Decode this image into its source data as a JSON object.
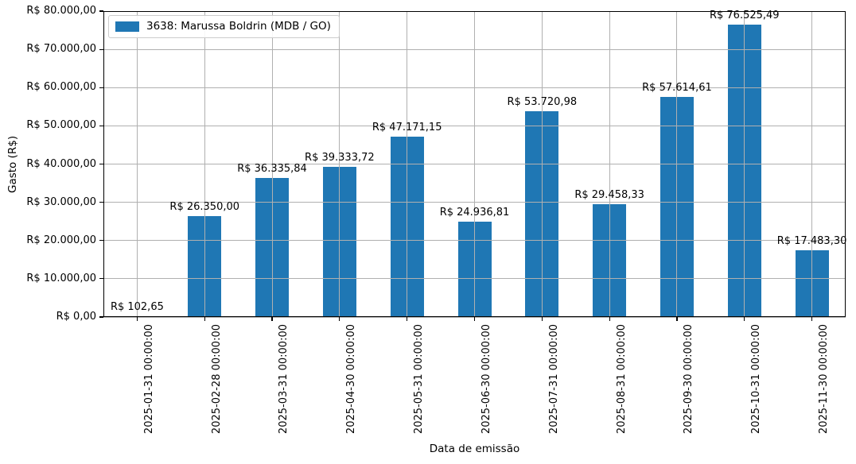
{
  "chart_data": {
    "type": "bar",
    "title": "",
    "legend": {
      "label": "3638: Marussa Boldrin (MDB / GO)",
      "position": "upper left"
    },
    "xlabel": "Data de emissão",
    "ylabel": "Gasto (R$)",
    "categories": [
      "2025-01-31 00:00:00",
      "2025-02-28 00:00:00",
      "2025-03-31 00:00:00",
      "2025-04-30 00:00:00",
      "2025-05-31 00:00:00",
      "2025-06-30 00:00:00",
      "2025-07-31 00:00:00",
      "2025-08-31 00:00:00",
      "2025-09-30 00:00:00",
      "2025-10-31 00:00:00",
      "2025-11-30 00:00:00"
    ],
    "values": [
      102.65,
      26350.0,
      36335.84,
      39333.72,
      47171.15,
      24936.81,
      53720.98,
      29458.33,
      57614.61,
      76525.49,
      17483.3
    ],
    "value_labels": [
      "R$ 102,65",
      "R$ 26.350,00",
      "R$ 36.335,84",
      "R$ 39.333,72",
      "R$ 47.171,15",
      "R$ 24.936,81",
      "R$ 53.720,98",
      "R$ 29.458,33",
      "R$ 57.614,61",
      "R$ 76.525,49",
      "R$ 17.483,30"
    ],
    "y_ticks": [
      {
        "value": 0,
        "label": "R$ 0,00"
      },
      {
        "value": 10000,
        "label": "R$ 10.000,00"
      },
      {
        "value": 20000,
        "label": "R$ 20.000,00"
      },
      {
        "value": 30000,
        "label": "R$ 30.000,00"
      },
      {
        "value": 40000,
        "label": "R$ 40.000,00"
      },
      {
        "value": 50000,
        "label": "R$ 50.000,00"
      },
      {
        "value": 60000,
        "label": "R$ 60.000,00"
      },
      {
        "value": 70000,
        "label": "R$ 70.000,00"
      },
      {
        "value": 80000,
        "label": "R$ 80.000,00"
      }
    ],
    "ylim": [
      0,
      80000
    ],
    "grid": true,
    "colors": {
      "bar": "#1f77b4",
      "grid": "#b0b0b0",
      "spine": "#000000",
      "text": "#000000",
      "legend_border": "#cccccc",
      "background": "#ffffff"
    }
  }
}
